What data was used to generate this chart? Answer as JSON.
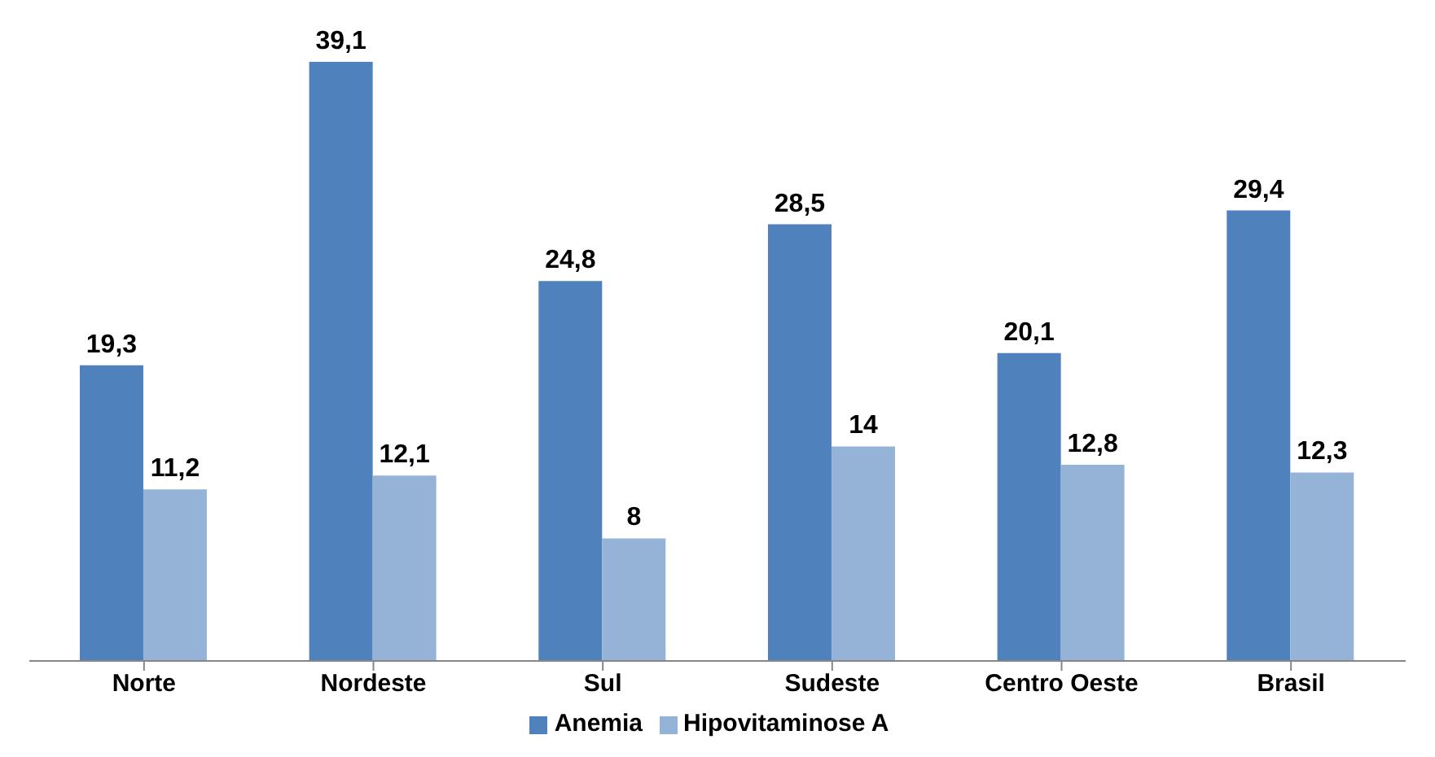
{
  "chart_data": {
    "type": "bar",
    "categories": [
      "Norte",
      "Nordeste",
      "Sul",
      "Sudeste",
      "Centro Oeste",
      "Brasil"
    ],
    "series": [
      {
        "name": "Anemia",
        "color": "#4f81bd",
        "values": [
          19.3,
          39.1,
          24.8,
          28.5,
          20.1,
          29.4
        ],
        "value_labels": [
          "19,3",
          "39,1",
          "24,8",
          "28,5",
          "20,1",
          "29,4"
        ]
      },
      {
        "name": "Hipovitaminose A",
        "color": "#95b3d7",
        "values": [
          11.2,
          12.1,
          8,
          14,
          12.8,
          12.3
        ],
        "value_labels": [
          "11,2",
          "12,1",
          "8",
          "14",
          "12,8",
          "12,3"
        ]
      }
    ],
    "legend": "bottom",
    "grid": false
  }
}
